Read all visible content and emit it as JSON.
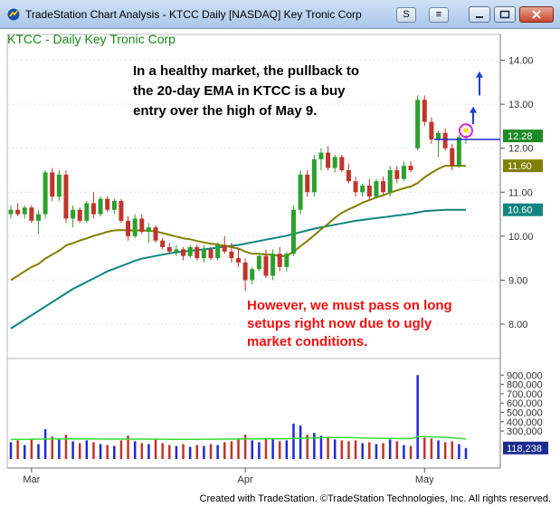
{
  "window": {
    "title": "TradeStation Chart Analysis - KTCC Daily [NASDAQ] Key Tronic Corp",
    "s_button": "S",
    "menu_button": "≡",
    "icons": [
      "tradestation-logo-icon",
      "minimize-icon",
      "maximize-icon",
      "close-icon"
    ]
  },
  "footer": {
    "text": "Created with TradeStation. ©TradeStation Technologies, Inc. All rights reserved."
  },
  "colors": {
    "up_candle": "#2ca02c",
    "down_candle": "#c0352b",
    "ema20": "#808000",
    "ema50": "#11847f",
    "volume_ma": "#33dd33",
    "volume_bar": "#1f2ad6",
    "annotation_dark": "#000000",
    "annotation_red": "#ee1111",
    "arrow": "#1f3fd6",
    "price_tag": "#1e8a24"
  },
  "chart_data": {
    "type": "candlestick",
    "legend": "KTCC - Daily  Key Tronic Corp",
    "x_labels": [
      "Mar",
      "Apr",
      "May"
    ],
    "price_axis": {
      "min": 7.3,
      "max": 14.3,
      "ticks": [
        "8.00",
        "9.00",
        "10.00",
        "11.00",
        "12.00",
        "13.00",
        "14.00"
      ]
    },
    "volume_axis": {
      "min": 0,
      "max": 1000000,
      "ticks": [
        "300,000",
        "400,000",
        "500,000",
        "600,000",
        "700,000",
        "800,000",
        "900,000"
      ]
    },
    "price_tags": [
      {
        "label": "12.28",
        "value": 12.28,
        "color": "#1e8a24"
      },
      {
        "label": "11.60",
        "value": 11.6,
        "color": "#808000"
      },
      {
        "label": "10.60",
        "value": 10.6,
        "color": "#11847f"
      }
    ],
    "volume_tag": {
      "label": "118,238",
      "value": 118238
    },
    "reference_line": 12.2,
    "annotations": {
      "top": [
        "In a healthy market, the pullback to",
        "the 20-day EMA in KTCC is a buy",
        "entry over the high of May 9."
      ],
      "bottom": [
        "However, we must pass on long",
        "setups right now due to ugly",
        "market conditions."
      ]
    },
    "candles": [
      {
        "o": 10.5,
        "h": 10.7,
        "l": 10.4,
        "c": 10.6,
        "v": 180000
      },
      {
        "o": 10.6,
        "h": 10.75,
        "l": 10.45,
        "c": 10.5,
        "v": 200000
      },
      {
        "o": 10.5,
        "h": 10.7,
        "l": 10.4,
        "c": 10.65,
        "v": 150000
      },
      {
        "o": 10.65,
        "h": 10.7,
        "l": 10.3,
        "c": 10.35,
        "v": 220000
      },
      {
        "o": 10.35,
        "h": 10.6,
        "l": 10.05,
        "c": 10.5,
        "v": 160000
      },
      {
        "o": 10.5,
        "h": 11.5,
        "l": 10.4,
        "c": 11.45,
        "v": 320000
      },
      {
        "o": 11.45,
        "h": 11.55,
        "l": 10.8,
        "c": 10.9,
        "v": 240000
      },
      {
        "o": 10.9,
        "h": 11.5,
        "l": 10.8,
        "c": 11.4,
        "v": 210000
      },
      {
        "o": 11.4,
        "h": 11.5,
        "l": 10.3,
        "c": 10.4,
        "v": 260000
      },
      {
        "o": 10.4,
        "h": 10.7,
        "l": 10.2,
        "c": 10.6,
        "v": 190000
      },
      {
        "o": 10.6,
        "h": 10.65,
        "l": 10.3,
        "c": 10.35,
        "v": 170000
      },
      {
        "o": 10.35,
        "h": 10.8,
        "l": 10.3,
        "c": 10.75,
        "v": 200000
      },
      {
        "o": 10.75,
        "h": 11.0,
        "l": 10.4,
        "c": 10.5,
        "v": 180000
      },
      {
        "o": 10.5,
        "h": 10.9,
        "l": 10.45,
        "c": 10.85,
        "v": 160000
      },
      {
        "o": 10.85,
        "h": 10.9,
        "l": 10.55,
        "c": 10.6,
        "v": 150000
      },
      {
        "o": 10.6,
        "h": 10.85,
        "l": 10.5,
        "c": 10.8,
        "v": 140000
      },
      {
        "o": 10.8,
        "h": 10.85,
        "l": 10.3,
        "c": 10.35,
        "v": 200000
      },
      {
        "o": 10.35,
        "h": 10.45,
        "l": 9.9,
        "c": 10.0,
        "v": 250000
      },
      {
        "o": 10.0,
        "h": 10.5,
        "l": 9.95,
        "c": 10.4,
        "v": 190000
      },
      {
        "o": 10.4,
        "h": 10.5,
        "l": 10.05,
        "c": 10.1,
        "v": 170000
      },
      {
        "o": 10.1,
        "h": 10.3,
        "l": 9.85,
        "c": 10.2,
        "v": 160000
      },
      {
        "o": 10.2,
        "h": 10.25,
        "l": 9.85,
        "c": 9.9,
        "v": 210000
      },
      {
        "o": 9.9,
        "h": 9.95,
        "l": 9.7,
        "c": 9.75,
        "v": 170000
      },
      {
        "o": 9.75,
        "h": 9.85,
        "l": 9.6,
        "c": 9.65,
        "v": 150000
      },
      {
        "o": 9.65,
        "h": 9.8,
        "l": 9.55,
        "c": 9.7,
        "v": 140000
      },
      {
        "o": 9.7,
        "h": 9.75,
        "l": 9.45,
        "c": 9.55,
        "v": 160000
      },
      {
        "o": 9.55,
        "h": 9.8,
        "l": 9.5,
        "c": 9.75,
        "v": 130000
      },
      {
        "o": 9.75,
        "h": 9.8,
        "l": 9.45,
        "c": 9.5,
        "v": 150000
      },
      {
        "o": 9.5,
        "h": 9.8,
        "l": 9.4,
        "c": 9.7,
        "v": 140000
      },
      {
        "o": 9.7,
        "h": 9.75,
        "l": 9.45,
        "c": 9.5,
        "v": 160000
      },
      {
        "o": 9.5,
        "h": 9.85,
        "l": 9.45,
        "c": 9.8,
        "v": 150000
      },
      {
        "o": 9.8,
        "h": 10.0,
        "l": 9.6,
        "c": 9.65,
        "v": 180000
      },
      {
        "o": 9.65,
        "h": 9.85,
        "l": 9.4,
        "c": 9.5,
        "v": 190000
      },
      {
        "o": 9.5,
        "h": 9.7,
        "l": 9.3,
        "c": 9.4,
        "v": 210000
      },
      {
        "o": 9.4,
        "h": 9.5,
        "l": 8.75,
        "c": 9.0,
        "v": 260000
      },
      {
        "o": 9.0,
        "h": 9.3,
        "l": 8.9,
        "c": 9.25,
        "v": 200000
      },
      {
        "o": 9.25,
        "h": 9.6,
        "l": 9.2,
        "c": 9.55,
        "v": 180000
      },
      {
        "o": 9.55,
        "h": 9.7,
        "l": 9.05,
        "c": 9.1,
        "v": 210000
      },
      {
        "o": 9.1,
        "h": 9.7,
        "l": 9.0,
        "c": 9.6,
        "v": 220000
      },
      {
        "o": 9.6,
        "h": 9.75,
        "l": 9.2,
        "c": 9.3,
        "v": 190000
      },
      {
        "o": 9.3,
        "h": 9.65,
        "l": 9.2,
        "c": 9.6,
        "v": 200000
      },
      {
        "o": 9.6,
        "h": 10.7,
        "l": 9.55,
        "c": 10.6,
        "v": 380000
      },
      {
        "o": 10.6,
        "h": 11.5,
        "l": 10.5,
        "c": 11.4,
        "v": 360000
      },
      {
        "o": 11.4,
        "h": 11.5,
        "l": 10.9,
        "c": 11.0,
        "v": 260000
      },
      {
        "o": 11.0,
        "h": 11.85,
        "l": 10.9,
        "c": 11.75,
        "v": 280000
      },
      {
        "o": 11.75,
        "h": 12.0,
        "l": 11.5,
        "c": 11.9,
        "v": 250000
      },
      {
        "o": 11.9,
        "h": 12.05,
        "l": 11.5,
        "c": 11.55,
        "v": 240000
      },
      {
        "o": 11.55,
        "h": 11.85,
        "l": 11.45,
        "c": 11.8,
        "v": 210000
      },
      {
        "o": 11.8,
        "h": 11.85,
        "l": 11.45,
        "c": 11.5,
        "v": 200000
      },
      {
        "o": 11.5,
        "h": 11.65,
        "l": 11.2,
        "c": 11.25,
        "v": 190000
      },
      {
        "o": 11.25,
        "h": 11.35,
        "l": 10.9,
        "c": 11.0,
        "v": 200000
      },
      {
        "o": 11.0,
        "h": 11.2,
        "l": 10.9,
        "c": 11.15,
        "v": 170000
      },
      {
        "o": 11.15,
        "h": 11.3,
        "l": 10.8,
        "c": 10.9,
        "v": 180000
      },
      {
        "o": 10.9,
        "h": 11.3,
        "l": 10.85,
        "c": 11.25,
        "v": 160000
      },
      {
        "o": 11.25,
        "h": 11.35,
        "l": 10.95,
        "c": 11.0,
        "v": 170000
      },
      {
        "o": 11.0,
        "h": 11.6,
        "l": 10.9,
        "c": 11.5,
        "v": 210000
      },
      {
        "o": 11.5,
        "h": 11.6,
        "l": 11.2,
        "c": 11.3,
        "v": 190000
      },
      {
        "o": 11.3,
        "h": 11.7,
        "l": 11.25,
        "c": 11.6,
        "v": 150000
      },
      {
        "o": 11.6,
        "h": 11.7,
        "l": 11.45,
        "c": 11.5,
        "v": 140000
      },
      {
        "o": 12.0,
        "h": 13.2,
        "l": 11.95,
        "c": 13.1,
        "v": 900000
      },
      {
        "o": 13.1,
        "h": 13.2,
        "l": 12.5,
        "c": 12.6,
        "v": 230000
      },
      {
        "o": 12.6,
        "h": 12.7,
        "l": 12.1,
        "c": 12.2,
        "v": 220000
      },
      {
        "o": 12.2,
        "h": 12.4,
        "l": 11.8,
        "c": 12.35,
        "v": 200000
      },
      {
        "o": 12.35,
        "h": 12.45,
        "l": 11.95,
        "c": 12.0,
        "v": 180000
      },
      {
        "o": 12.0,
        "h": 12.1,
        "l": 11.5,
        "c": 11.6,
        "v": 190000
      },
      {
        "o": 11.6,
        "h": 12.3,
        "l": 11.55,
        "c": 12.25,
        "v": 160000
      },
      {
        "o": 12.25,
        "h": 12.3,
        "l": 12.1,
        "c": 12.28,
        "v": 118238
      }
    ],
    "ema20": [
      9.0,
      9.1,
      9.2,
      9.3,
      9.37,
      9.49,
      9.58,
      9.67,
      9.79,
      9.84,
      9.9,
      9.95,
      10.01,
      10.05,
      10.1,
      10.13,
      10.14,
      10.13,
      10.13,
      10.13,
      10.12,
      10.11,
      10.07,
      10.03,
      9.99,
      9.95,
      9.93,
      9.89,
      9.86,
      9.83,
      9.81,
      9.78,
      9.75,
      9.72,
      9.65,
      9.6,
      9.6,
      9.58,
      9.58,
      9.55,
      9.55,
      9.65,
      9.77,
      9.89,
      10.02,
      10.16,
      10.28,
      10.42,
      10.53,
      10.61,
      10.68,
      10.76,
      10.82,
      10.88,
      10.93,
      10.99,
      11.04,
      11.09,
      11.13,
      11.21,
      11.34,
      11.44,
      11.53,
      11.6,
      11.6,
      11.6,
      11.6
    ],
    "ema50": [
      7.9,
      8.0,
      8.1,
      8.2,
      8.3,
      8.4,
      8.5,
      8.6,
      8.7,
      8.8,
      8.88,
      8.96,
      9.04,
      9.12,
      9.2,
      9.26,
      9.32,
      9.38,
      9.44,
      9.49,
      9.52,
      9.55,
      9.58,
      9.61,
      9.63,
      9.65,
      9.67,
      9.68,
      9.7,
      9.72,
      9.74,
      9.76,
      9.78,
      9.8,
      9.83,
      9.86,
      9.89,
      9.92,
      9.95,
      9.98,
      10.01,
      10.05,
      10.09,
      10.13,
      10.17,
      10.2,
      10.23,
      10.26,
      10.29,
      10.32,
      10.35,
      10.37,
      10.39,
      10.41,
      10.43,
      10.45,
      10.47,
      10.49,
      10.51,
      10.54,
      10.57,
      10.58,
      10.59,
      10.6,
      10.6,
      10.6,
      10.6
    ],
    "volume_ma": [
      210000,
      210000,
      212000,
      212000,
      214000,
      214000,
      215000,
      215000,
      216000,
      216000,
      216000,
      216000,
      215000,
      215000,
      214000,
      214000,
      214000,
      214000,
      214000,
      214000,
      213000,
      213000,
      213000,
      212000,
      212000,
      212000,
      212000,
      212000,
      213000,
      213000,
      213000,
      214000,
      214000,
      215000,
      215000,
      216000,
      216000,
      216000,
      217000,
      217000,
      217000,
      220000,
      222000,
      224000,
      226000,
      228000,
      230000,
      230000,
      230000,
      230000,
      228000,
      226000,
      224000,
      222000,
      220000,
      220000,
      219000,
      218000,
      218000,
      240000,
      240000,
      238000,
      236000,
      232000,
      228000,
      222000,
      215000
    ]
  }
}
